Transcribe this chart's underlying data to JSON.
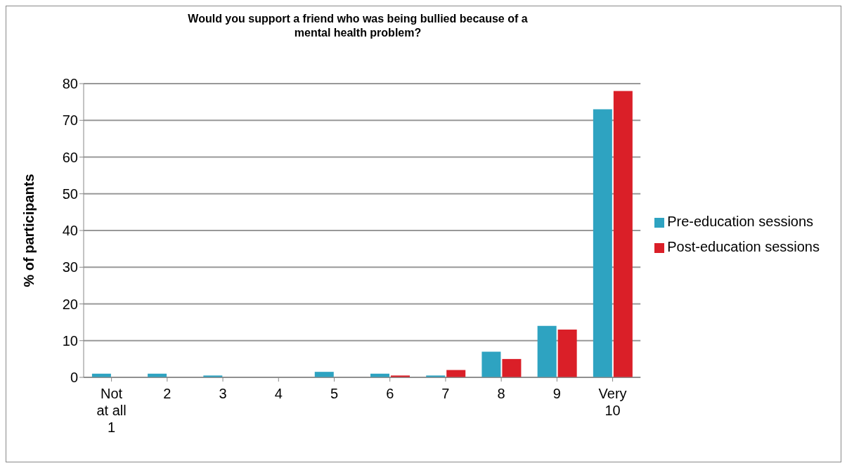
{
  "chart_data": {
    "type": "bar",
    "title": "Would you support a friend who was being bullied because of a mental health problem?",
    "ylabel": "% of participants",
    "categories": [
      "Not\nat all\n1",
      "2",
      "3",
      "4",
      "5",
      "6",
      "7",
      "8",
      "9",
      "Very\n10"
    ],
    "series": [
      {
        "name": "Pre-education sessions",
        "color": "#2ea3c1",
        "values": [
          1,
          1,
          0.5,
          0,
          1.5,
          1,
          0.5,
          7,
          14,
          73
        ]
      },
      {
        "name": "Post-education sessions",
        "color": "#da1f28",
        "values": [
          0,
          0,
          0,
          0,
          0,
          0.5,
          2,
          5,
          13,
          78
        ]
      }
    ],
    "ylim": [
      0,
      80
    ],
    "yticks": [
      0,
      10,
      20,
      30,
      40,
      50,
      60,
      70,
      80
    ],
    "grid": "y",
    "legend": "right"
  }
}
